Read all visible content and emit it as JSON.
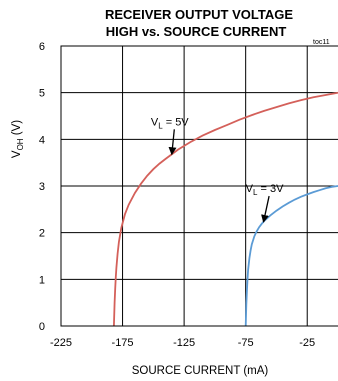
{
  "chart_data": {
    "type": "line",
    "title": [
      "RECEIVER OUTPUT VOLTAGE",
      "HIGH vs. SOURCE CURRENT"
    ],
    "figure_id": "toc11",
    "xlabel": "SOURCE CURRENT (mA)",
    "ylabel": {
      "base": "V",
      "sub": "OH",
      "tail": " (V)"
    },
    "xlim": [
      -225,
      0
    ],
    "ylim": [
      0,
      6
    ],
    "x_ticks": [
      -225,
      -175,
      -125,
      -75,
      -25
    ],
    "x_grid": [
      -225,
      -175,
      -125,
      -75,
      -25
    ],
    "y_ticks": [
      0,
      1,
      2,
      3,
      4,
      5,
      6
    ],
    "grid": true,
    "series": [
      {
        "name": {
          "base": "V",
          "sub": "L",
          "tail": " = 5V"
        },
        "color": "#d4605a",
        "x": [
          -182,
          -181.5,
          -181,
          -180.5,
          -180,
          -179,
          -178,
          -176,
          -173,
          -170,
          -165,
          -160,
          -155,
          -150,
          -145,
          -140,
          -130,
          -120,
          -110,
          -100,
          -90,
          -80,
          -70,
          -60,
          -50,
          -40,
          -30,
          -20,
          -10,
          0
        ],
        "y": [
          0,
          0.5,
          0.8,
          1.05,
          1.25,
          1.55,
          1.8,
          2.1,
          2.4,
          2.6,
          2.85,
          3.05,
          3.22,
          3.36,
          3.48,
          3.58,
          3.78,
          3.94,
          4.08,
          4.2,
          4.31,
          4.42,
          4.52,
          4.61,
          4.69,
          4.77,
          4.84,
          4.9,
          4.95,
          5.0
        ]
      },
      {
        "name": {
          "base": "V",
          "sub": "L",
          "tail": " = 3V"
        },
        "color": "#5b9bd5",
        "x": [
          -75,
          -74.5,
          -74,
          -73.5,
          -73,
          -72,
          -71,
          -70,
          -68,
          -66,
          -64,
          -62,
          -60,
          -55,
          -50,
          -45,
          -40,
          -35,
          -30,
          -25,
          -20,
          -15,
          -10,
          -5,
          0
        ],
        "y": [
          0,
          0.45,
          0.75,
          1.0,
          1.2,
          1.45,
          1.62,
          1.75,
          1.92,
          2.03,
          2.12,
          2.19,
          2.25,
          2.37,
          2.47,
          2.56,
          2.64,
          2.71,
          2.77,
          2.82,
          2.87,
          2.91,
          2.95,
          2.98,
          3.0
        ]
      }
    ],
    "annotations": [
      {
        "series": 0,
        "label_x": -152,
        "label_y": 4.3,
        "arrow_to": [
          -135,
          3.68
        ]
      },
      {
        "series": 1,
        "label_x": -75,
        "label_y": 2.87,
        "arrow_to": [
          -60.5,
          2.23
        ]
      }
    ]
  }
}
